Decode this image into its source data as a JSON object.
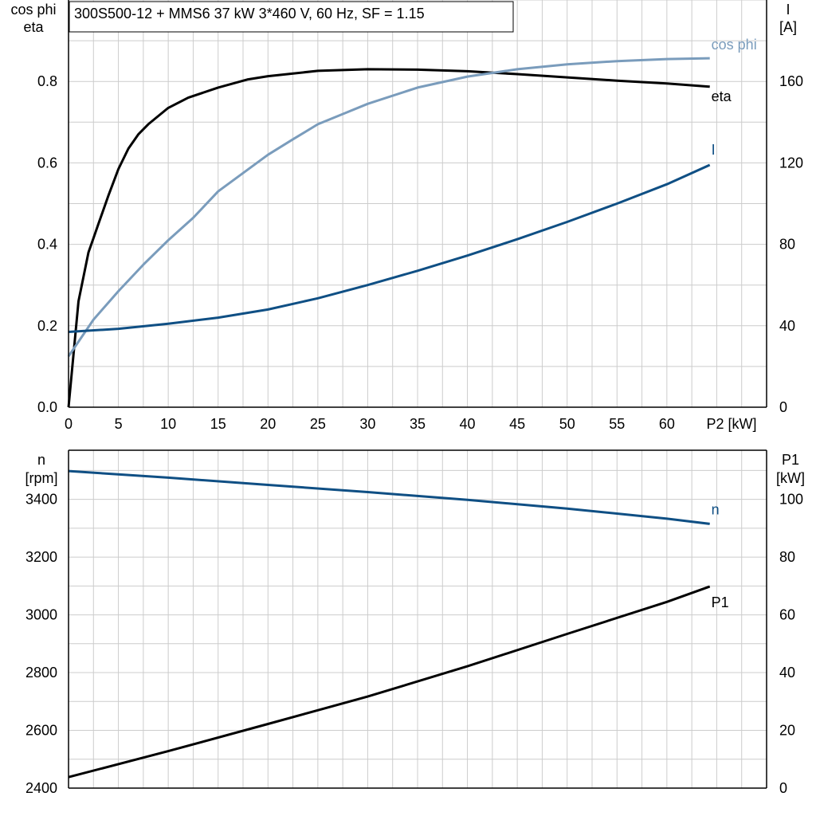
{
  "title": "300S500-12 + MMS6   37 kW   3*460 V, 60 Hz, SF = 1.15",
  "colors": {
    "eta": "#000000",
    "cosphi": "#7a9cbc",
    "current": "#0f4f84",
    "speed": "#0f4f84",
    "p1": "#000000"
  },
  "chart_data": [
    {
      "type": "line",
      "name": "efficiency-powerfactor-current",
      "x_label": "P2 [kW]",
      "x_ticks": [
        "0",
        "5",
        "10",
        "15",
        "20",
        "25",
        "30",
        "35",
        "40",
        "45",
        "50",
        "55",
        "60"
      ],
      "xlim": [
        0,
        70
      ],
      "left_axis_label": [
        "cos phi",
        "eta"
      ],
      "left_ticks": [
        "0.0",
        "0.2",
        "0.4",
        "0.6",
        "0.8"
      ],
      "ylim_left": [
        0,
        1.0
      ],
      "right_axis_label": [
        "I",
        "[A]"
      ],
      "right_ticks": [
        "0",
        "40",
        "80",
        "120",
        "160"
      ],
      "ylim_right": [
        0,
        200
      ],
      "series": [
        {
          "name": "eta",
          "axis": "left",
          "color_key": "eta",
          "x": [
            0,
            1,
            2,
            2.5,
            3,
            4,
            5,
            6,
            7,
            8,
            10,
            12,
            15,
            18,
            20,
            25,
            30,
            35,
            40,
            45,
            50,
            55,
            60,
            64.3
          ],
          "y": [
            0.0,
            0.26,
            0.38,
            0.415,
            0.45,
            0.52,
            0.585,
            0.635,
            0.67,
            0.695,
            0.735,
            0.76,
            0.785,
            0.805,
            0.813,
            0.826,
            0.83,
            0.829,
            0.825,
            0.818,
            0.81,
            0.802,
            0.795,
            0.787
          ]
        },
        {
          "name": "cos phi",
          "axis": "left",
          "color_key": "cosphi",
          "x": [
            0,
            2.5,
            5,
            7.5,
            10,
            12.5,
            15,
            17.5,
            20,
            22.5,
            25,
            27.5,
            30,
            35,
            40,
            45,
            50,
            55,
            60,
            64.3
          ],
          "y": [
            0.125,
            0.215,
            0.285,
            0.35,
            0.41,
            0.465,
            0.53,
            0.575,
            0.62,
            0.658,
            0.695,
            0.72,
            0.745,
            0.785,
            0.812,
            0.83,
            0.842,
            0.85,
            0.855,
            0.857
          ]
        },
        {
          "name": "I",
          "axis": "right",
          "color_key": "current",
          "x": [
            0,
            5,
            10,
            15,
            20,
            25,
            30,
            35,
            40,
            45,
            50,
            55,
            60,
            64.3
          ],
          "y": [
            37,
            38.5,
            41,
            44,
            48,
            53.5,
            60,
            67,
            74.5,
            82.5,
            91,
            100,
            109.5,
            119
          ]
        }
      ]
    },
    {
      "type": "line",
      "name": "speed-inputpower",
      "left_axis_label": [
        "n",
        "[rpm]"
      ],
      "left_ticks": [
        "2400",
        "2600",
        "2800",
        "3000",
        "3200",
        "3400"
      ],
      "ylim_left": [
        2400,
        3570
      ],
      "right_axis_label": [
        "P1",
        "[kW]"
      ],
      "right_ticks": [
        "0",
        "20",
        "40",
        "60",
        "80",
        "100"
      ],
      "ylim_right": [
        0,
        117
      ],
      "xlim": [
        0,
        70
      ],
      "series": [
        {
          "name": "n",
          "axis": "left",
          "color_key": "speed",
          "x": [
            0,
            10,
            20,
            30,
            40,
            50,
            60,
            64.3
          ],
          "y": [
            3498,
            3475,
            3450,
            3425,
            3398,
            3368,
            3333,
            3315
          ]
        },
        {
          "name": "P1",
          "axis": "right",
          "color_key": "p1",
          "x": [
            0,
            10,
            20,
            30,
            40,
            50,
            60,
            64.3
          ],
          "y": [
            3.8,
            12.8,
            22.2,
            31.7,
            42.2,
            53.4,
            64.5,
            69.8
          ]
        }
      ]
    }
  ]
}
